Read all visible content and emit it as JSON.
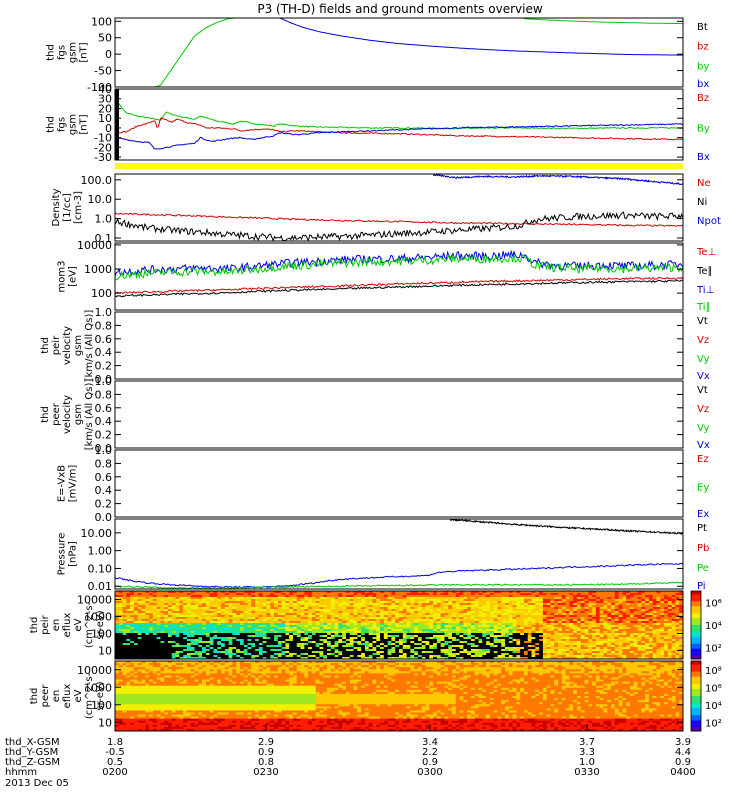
{
  "title": "P3 (TH-D) fields and ground moments overview",
  "date": "2013 Dec 05",
  "colors": {
    "black": "#000000",
    "red": "#d40000",
    "green": "#00c800",
    "blue": "#0000e0",
    "yellow": "#ffff00"
  },
  "chart_data": [
    {
      "type": "line",
      "ylabel": [
        "thd",
        "fgs",
        "gsm",
        "[nT]"
      ],
      "yticks": [
        "100",
        "50",
        "0",
        "-50",
        "-100"
      ],
      "ylim": [
        -100,
        110
      ],
      "legend": [
        {
          "name": "Bt",
          "color": "#000000"
        },
        {
          "name": "bz",
          "color": "#d40000"
        },
        {
          "name": "by",
          "color": "#00c800"
        },
        {
          "name": "bx",
          "color": "#0000e0"
        }
      ],
      "series": [
        {
          "name": "by",
          "color": "#00c800",
          "x": [
            0.0,
            0.02,
            0.04,
            0.06,
            0.07,
            0.08,
            0.09,
            0.1,
            0.11,
            0.12,
            0.13,
            0.14,
            0.16,
            0.18,
            0.2,
            0.21
          ],
          "y": [
            -100,
            -100,
            -100,
            -100,
            -100,
            -95,
            -70,
            -45,
            -20,
            5,
            30,
            55,
            80,
            97,
            108,
            110
          ]
        },
        {
          "name": "by2",
          "color": "#00c800",
          "x": [
            0.72,
            0.76,
            0.8,
            0.85,
            0.9,
            0.95,
            1.0
          ],
          "y": [
            108,
            104,
            101,
            98,
            96,
            94,
            93
          ]
        },
        {
          "name": "bx",
          "color": "#0000e0",
          "x": [
            0.29,
            0.31,
            0.33,
            0.36,
            0.4,
            0.45,
            0.5,
            0.56,
            0.62,
            0.7,
            0.8,
            0.9,
            1.0
          ],
          "y": [
            110,
            95,
            82,
            68,
            55,
            42,
            32,
            24,
            17,
            10,
            4,
            -1,
            -3
          ]
        }
      ]
    },
    {
      "type": "line",
      "ylabel": [
        "thd",
        "fgs",
        "gsm",
        "[nT]"
      ],
      "yticks": [
        "40",
        "30",
        "20",
        "10",
        "0",
        "-10",
        "-20",
        "-30"
      ],
      "ylim": [
        -33,
        40
      ],
      "legend": [
        {
          "name": "Bz",
          "color": "#d40000"
        },
        {
          "name": "By",
          "color": "#00c800"
        },
        {
          "name": "Bx",
          "color": "#0000e0"
        }
      ],
      "series": [
        {
          "name": "By",
          "color": "#00c800",
          "x": [
            0.0,
            0.01,
            0.02,
            0.03,
            0.04,
            0.06,
            0.07,
            0.08,
            0.09,
            0.1,
            0.12,
            0.14,
            0.15,
            0.18,
            0.21,
            0.22,
            0.25,
            0.28,
            0.29,
            0.32,
            0.35,
            0.4,
            0.45,
            0.5,
            0.6,
            0.7,
            0.8,
            0.9,
            1.0
          ],
          "y": [
            32,
            22,
            15,
            14,
            12,
            10,
            9,
            8,
            16,
            14,
            11,
            9,
            12,
            7,
            4,
            7,
            4,
            2,
            4,
            2,
            1,
            0.5,
            0,
            0,
            -0.5,
            0,
            -0.5,
            0,
            0
          ]
        },
        {
          "name": "Bz",
          "color": "#d40000",
          "x": [
            0.0,
            0.02,
            0.04,
            0.06,
            0.07,
            0.075,
            0.08,
            0.1,
            0.11,
            0.13,
            0.15,
            0.16,
            0.18,
            0.21,
            0.22,
            0.26,
            0.28,
            0.29,
            0.32,
            0.36,
            0.4,
            0.5,
            0.6,
            0.7,
            0.8,
            0.9,
            1.0
          ],
          "y": [
            -5,
            -4,
            2,
            5,
            8,
            -2,
            10,
            6,
            9,
            5,
            3,
            0,
            0,
            -1,
            -3,
            -1,
            -2,
            -4,
            -3,
            -4,
            -5,
            -6,
            -8,
            -9,
            -10,
            -11,
            -12
          ]
        },
        {
          "name": "Bx",
          "color": "#0000e0",
          "x": [
            0.0,
            0.02,
            0.04,
            0.06,
            0.07,
            0.09,
            0.1,
            0.12,
            0.14,
            0.15,
            0.17,
            0.2,
            0.22,
            0.24,
            0.28,
            0.29,
            0.32,
            0.36,
            0.4,
            0.45,
            0.5,
            0.6,
            0.7,
            0.8,
            0.9,
            1.0
          ],
          "y": [
            -10,
            -12,
            -14,
            -15,
            -22,
            -20,
            -19,
            -17,
            -16,
            -10,
            -14,
            -11,
            -10,
            -12,
            -8,
            -5,
            -7,
            -5,
            -4,
            -3,
            -2,
            0,
            1,
            2,
            3,
            4
          ]
        }
      ]
    },
    {
      "type": "line",
      "ylabel": [
        "Density",
        "[1/cc]",
        "[cm-3]"
      ],
      "yticks": [
        "100.0",
        "10.0",
        "1.0",
        "0.1"
      ],
      "scale": "log",
      "ylim": [
        0.07,
        200
      ],
      "legend": [
        {
          "name": "Ne",
          "color": "#d40000"
        },
        {
          "name": "Ni",
          "color": "#000000"
        },
        {
          "name": "Npot",
          "color": "#0000e0"
        },
        {
          "name": "",
          "color": "#000000"
        }
      ],
      "series": [
        {
          "name": "Ne",
          "color": "#d40000",
          "x": [
            0.0,
            0.1,
            0.2,
            0.3,
            0.4,
            0.5,
            0.6,
            0.7,
            0.8,
            0.9,
            1.0
          ],
          "y": [
            1.8,
            1.5,
            1.2,
            0.95,
            0.8,
            0.7,
            0.6,
            0.55,
            0.5,
            0.45,
            0.42
          ]
        },
        {
          "name": "Ni",
          "color": "#000000",
          "x": [
            0.0,
            0.05,
            0.1,
            0.15,
            0.2,
            0.25,
            0.3,
            0.35,
            0.4,
            0.45,
            0.5,
            0.55,
            0.6,
            0.65,
            0.7,
            0.72,
            0.74,
            0.78,
            0.82,
            0.86,
            0.9,
            0.95,
            1.0
          ],
          "y": [
            0.7,
            0.35,
            0.25,
            0.2,
            0.15,
            0.12,
            0.1,
            0.11,
            0.12,
            0.14,
            0.17,
            0.2,
            0.25,
            0.3,
            0.4,
            0.5,
            0.9,
            1.1,
            1.3,
            1.4,
            1.5,
            1.3,
            1.4
          ]
        },
        {
          "name": "Npot",
          "color": "#0000e0",
          "x": [
            0.56,
            0.6,
            0.65,
            0.7,
            0.75,
            0.8,
            0.85,
            0.9,
            0.95,
            1.0
          ],
          "y": [
            180,
            130,
            150,
            140,
            160,
            150,
            130,
            110,
            80,
            60
          ]
        }
      ]
    },
    {
      "type": "line",
      "ylabel": [
        "mom3",
        "[eV]"
      ],
      "yticks": [
        "10000",
        "1000",
        "100"
      ],
      "scale": "log",
      "ylim": [
        20,
        12000
      ],
      "legend": [
        {
          "name": "Te⊥",
          "color": "#d40000"
        },
        {
          "name": "Te∥",
          "color": "#000000"
        },
        {
          "name": "Ti⊥",
          "color": "#0000e0"
        },
        {
          "name": "Ti∥",
          "color": "#00c800"
        }
      ],
      "series": [
        {
          "name": "Ti⊥",
          "color": "#0000e0",
          "x": [
            0.0,
            0.05,
            0.1,
            0.15,
            0.2,
            0.25,
            0.3,
            0.35,
            0.4,
            0.45,
            0.5,
            0.55,
            0.6,
            0.65,
            0.7,
            0.72,
            0.74,
            0.78,
            0.82,
            0.86,
            0.9,
            0.95,
            1.0
          ],
          "y": [
            700,
            900,
            1000,
            1100,
            1000,
            1300,
            1700,
            2000,
            2400,
            2600,
            2700,
            3000,
            3600,
            3400,
            3800,
            3600,
            1800,
            1400,
            1300,
            1500,
            1300,
            1400,
            1600
          ]
        },
        {
          "name": "Ti∥",
          "color": "#00c800",
          "x": [
            0.0,
            0.05,
            0.1,
            0.15,
            0.2,
            0.25,
            0.3,
            0.35,
            0.4,
            0.45,
            0.5,
            0.55,
            0.6,
            0.65,
            0.7,
            0.72,
            0.74,
            0.78,
            0.82,
            0.86,
            0.9,
            0.95,
            1.0
          ],
          "y": [
            500,
            650,
            750,
            800,
            750,
            1000,
            1300,
            1500,
            1800,
            2000,
            2100,
            2300,
            2700,
            2600,
            2900,
            2700,
            1400,
            1100,
            1000,
            1100,
            1000,
            1100,
            1200
          ]
        },
        {
          "name": "Te⊥",
          "color": "#d40000",
          "x": [
            0.0,
            0.1,
            0.2,
            0.3,
            0.4,
            0.5,
            0.6,
            0.7,
            0.8,
            0.9,
            1.0
          ],
          "y": [
            100,
            120,
            140,
            170,
            200,
            240,
            280,
            320,
            360,
            400,
            420
          ]
        },
        {
          "name": "Te∥",
          "color": "#000000",
          "x": [
            0.0,
            0.1,
            0.2,
            0.3,
            0.4,
            0.5,
            0.6,
            0.7,
            0.8,
            0.9,
            1.0
          ],
          "y": [
            75,
            90,
            105,
            130,
            150,
            180,
            210,
            240,
            270,
            300,
            320
          ]
        }
      ]
    },
    {
      "type": "line",
      "ylabel": [
        "thd",
        "peir",
        "velocity",
        "gsm",
        "[km/s (All Qs)]"
      ],
      "yticks": [
        "1.0",
        "0.8",
        "0.6",
        "0.4",
        "0.2",
        "0.0"
      ],
      "ylim": [
        0,
        1
      ],
      "legend": [
        {
          "name": "Vt",
          "color": "#000000"
        },
        {
          "name": "Vz",
          "color": "#d40000"
        },
        {
          "name": "Vy",
          "color": "#00c800"
        },
        {
          "name": "Vx",
          "color": "#0000e0"
        }
      ],
      "series": []
    },
    {
      "type": "line",
      "ylabel": [
        "thd",
        "peer",
        "velocity",
        "gsm",
        "[km/s (All Qs)]"
      ],
      "yticks": [
        "1.0",
        "0.8",
        "0.6",
        "0.4",
        "0.2",
        "0.0"
      ],
      "ylim": [
        0,
        1
      ],
      "legend": [
        {
          "name": "Vt",
          "color": "#000000"
        },
        {
          "name": "Vz",
          "color": "#d40000"
        },
        {
          "name": "Vy",
          "color": "#00c800"
        },
        {
          "name": "Vx",
          "color": "#0000e0"
        }
      ],
      "series": []
    },
    {
      "type": "line",
      "ylabel": [
        "E=-VxB",
        "[mV/m]"
      ],
      "yticks": [
        "1.0",
        "0.8",
        "0.6",
        "0.4",
        "0.2",
        "0.0"
      ],
      "ylim": [
        0,
        1
      ],
      "legend": [
        {
          "name": "Ez",
          "color": "#d40000"
        },
        {
          "name": "Ey",
          "color": "#00c800"
        },
        {
          "name": "Ex",
          "color": "#0000e0"
        }
      ],
      "series": []
    },
    {
      "type": "line",
      "ylabel": [
        "Pressure",
        "[nPa]"
      ],
      "yticks": [
        "10.00",
        "1.00",
        "0.10",
        "0.01"
      ],
      "scale": "log",
      "ylim": [
        0.007,
        60
      ],
      "legend": [
        {
          "name": "Pt",
          "color": "#000000"
        },
        {
          "name": "Pb",
          "color": "#d40000"
        },
        {
          "name": "Pe",
          "color": "#00c800"
        },
        {
          "name": "Pi",
          "color": "#0000e0"
        }
      ],
      "series": [
        {
          "name": "Pt",
          "color": "#000000",
          "x": [
            0.59,
            0.65,
            0.7,
            0.75,
            0.8,
            0.85,
            0.9,
            0.95,
            1.0
          ],
          "y": [
            55,
            40,
            30,
            24,
            19,
            16,
            13,
            11,
            9
          ]
        },
        {
          "name": "Pi",
          "color": "#0000e0",
          "x": [
            0.0,
            0.03,
            0.06,
            0.1,
            0.15,
            0.2,
            0.25,
            0.3,
            0.35,
            0.4,
            0.45,
            0.5,
            0.55,
            0.57,
            0.6,
            0.65,
            0.7,
            0.75,
            0.8,
            0.85,
            0.9,
            0.95,
            1.0
          ],
          "y": [
            0.03,
            0.02,
            0.015,
            0.012,
            0.01,
            0.009,
            0.009,
            0.01,
            0.015,
            0.025,
            0.03,
            0.035,
            0.04,
            0.06,
            0.07,
            0.08,
            0.09,
            0.1,
            0.12,
            0.13,
            0.15,
            0.17,
            0.18
          ]
        },
        {
          "name": "Pe",
          "color": "#00c800",
          "x": [
            0.0,
            0.1,
            0.2,
            0.3,
            0.4,
            0.5,
            0.6,
            0.7,
            0.8,
            0.9,
            0.95,
            1.0
          ],
          "y": [
            0.01,
            0.008,
            0.008,
            0.009,
            0.01,
            0.011,
            0.012,
            0.012,
            0.012,
            0.013,
            0.015,
            0.016
          ]
        }
      ]
    },
    {
      "type": "heatmap",
      "ylabel": [
        "thd",
        "peir",
        "en",
        "eflux",
        "eV",
        "(cm^2-s-",
        "sr-eV)"
      ],
      "yticks": [
        "10000",
        "1000",
        "100",
        "10"
      ],
      "colorbar_ticks": [
        "10⁶",
        "10⁴",
        "10²"
      ]
    },
    {
      "type": "heatmap",
      "ylabel": [
        "thd",
        "peer",
        "en",
        "eflux",
        "eV",
        "(cm^2-s-",
        "sr-eV)"
      ],
      "yticks": [
        "10000",
        "1000",
        "100",
        "10"
      ],
      "colorbar_ticks": [
        "10⁸",
        "10⁶",
        "10⁴",
        "10²"
      ]
    }
  ],
  "xaxis": {
    "labels": [
      "thd_X-GSM",
      "thd_Y-GSM",
      "thd_Z-GSM",
      "hhmm"
    ],
    "columns": [
      [
        "1.8",
        "-0.5",
        "0.5",
        "0200"
      ],
      [
        "2.9",
        "0.9",
        "0.8",
        "0230"
      ],
      [
        "3.4",
        "2.2",
        "0.9",
        "0300"
      ],
      [
        "3.7",
        "3.3",
        "1.0",
        "0330"
      ],
      [
        "3.9",
        "4.4",
        "0.9",
        "0400"
      ]
    ]
  }
}
